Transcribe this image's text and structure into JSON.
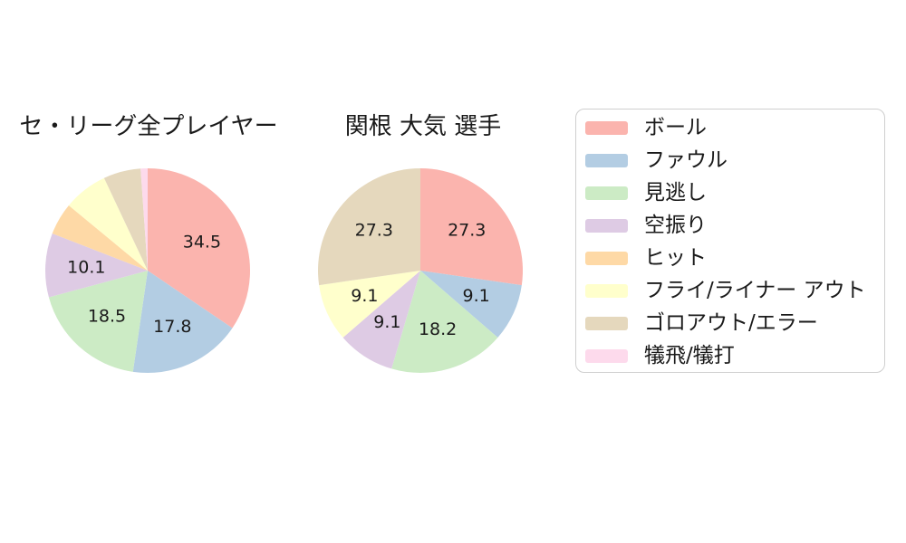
{
  "page": {
    "background_color": "#ffffff",
    "text_color": "#1a1a1a"
  },
  "chart_data": [
    {
      "type": "pie",
      "title": "セ・リーグ全プレイヤー",
      "labels": [
        "ボール",
        "ファウル",
        "見逃し",
        "空振り",
        "ヒット",
        "フライ/ライナー アウト",
        "ゴロアウト/エラー",
        "犠飛/犠打"
      ],
      "values": [
        34.5,
        17.8,
        18.5,
        10.1,
        5.1,
        7.0,
        5.9,
        1.1
      ],
      "value_labels": [
        "34.5",
        "17.8",
        "18.5",
        "10.1",
        "",
        "",
        "",
        ""
      ],
      "colors": [
        "#fbb4ae",
        "#b3cde3",
        "#ccebc5",
        "#decbe4",
        "#fed9a6",
        "#ffffcc",
        "#e5d8bd",
        "#fddaec"
      ],
      "start_angle_deg": 0,
      "direction": "clockwise"
    },
    {
      "type": "pie",
      "title": "関根 大気 選手",
      "labels": [
        "ボール",
        "ファウル",
        "見逃し",
        "空振り",
        "フライ/ライナー アウト",
        "ゴロアウト/エラー"
      ],
      "values": [
        27.3,
        9.1,
        18.2,
        9.1,
        9.1,
        27.3
      ],
      "value_labels": [
        "27.3",
        "9.1",
        "18.2",
        "9.1",
        "9.1",
        "27.3"
      ],
      "colors": [
        "#fbb4ae",
        "#b3cde3",
        "#ccebc5",
        "#decbe4",
        "#ffffcc",
        "#e5d8bd"
      ],
      "start_angle_deg": 0,
      "direction": "clockwise"
    }
  ],
  "legend": {
    "position": "right",
    "items": [
      {
        "label": "ボール",
        "color": "#fbb4ae"
      },
      {
        "label": "ファウル",
        "color": "#b3cde3"
      },
      {
        "label": "見逃し",
        "color": "#ccebc5"
      },
      {
        "label": "空振り",
        "color": "#decbe4"
      },
      {
        "label": "ヒット",
        "color": "#fed9a6"
      },
      {
        "label": "フライ/ライナー アウト",
        "color": "#ffffcc"
      },
      {
        "label": "ゴロアウト/エラー",
        "color": "#e5d8bd"
      },
      {
        "label": "犠飛/犠打",
        "color": "#fddaec"
      }
    ]
  }
}
